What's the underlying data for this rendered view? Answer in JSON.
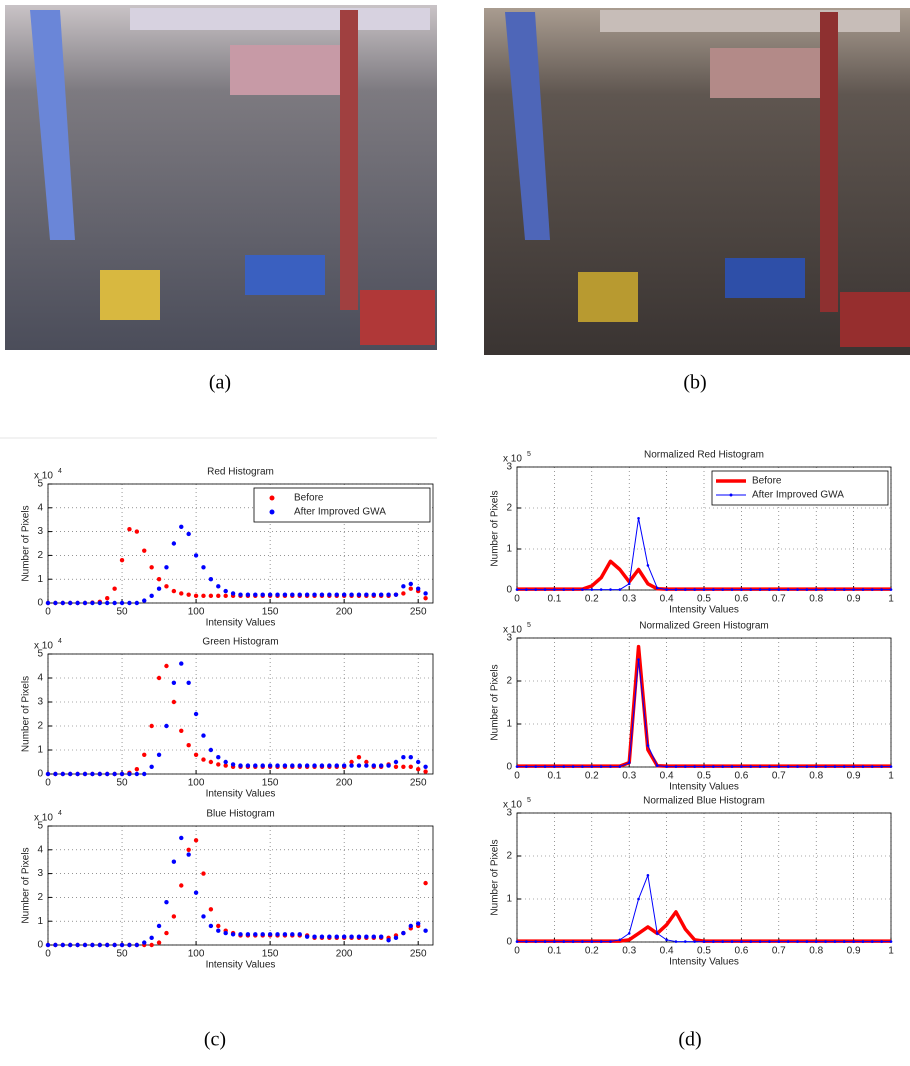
{
  "figure_labels": [
    "(a)",
    "(b)",
    "(c)",
    "(d)"
  ],
  "chart_data": [
    {
      "type": "scatter",
      "title": "Red Histogram",
      "x_label": "Intensity Values",
      "y_label": "Number of Pixels",
      "y_multiplier": "x 10",
      "y_exponent": 4,
      "xlim": [
        0,
        260
      ],
      "ylim": [
        0,
        5
      ],
      "xticks": [
        0,
        50,
        100,
        150,
        200,
        250
      ],
      "yticks": [
        0,
        1,
        2,
        3,
        4,
        5
      ],
      "grid": true,
      "legend": "upper right",
      "x": [
        0,
        5,
        10,
        15,
        20,
        25,
        30,
        35,
        40,
        45,
        50,
        55,
        60,
        65,
        70,
        75,
        80,
        85,
        90,
        95,
        100,
        105,
        110,
        115,
        120,
        125,
        130,
        135,
        140,
        145,
        150,
        155,
        160,
        165,
        170,
        175,
        180,
        185,
        190,
        195,
        200,
        205,
        210,
        215,
        220,
        225,
        230,
        235,
        240,
        245,
        250,
        255
      ],
      "series": [
        {
          "name": "Before",
          "color": "#ff0000",
          "values": [
            0,
            0,
            0,
            0,
            0,
            0,
            0.02,
            0.05,
            0.2,
            0.6,
            1.8,
            3.1,
            3,
            2.2,
            1.5,
            1,
            0.7,
            0.5,
            0.4,
            0.35,
            0.3,
            0.3,
            0.3,
            0.3,
            0.3,
            0.3,
            0.3,
            0.3,
            0.3,
            0.3,
            0.3,
            0.3,
            0.3,
            0.3,
            0.3,
            0.3,
            0.3,
            0.3,
            0.3,
            0.3,
            0.3,
            0.3,
            0.3,
            0.3,
            0.3,
            0.3,
            0.3,
            0.35,
            0.4,
            0.6,
            0.5,
            0.2
          ]
        },
        {
          "name": "After Improved GWA",
          "color": "#0000ff",
          "values": [
            0,
            0,
            0,
            0,
            0,
            0,
            0,
            0,
            0,
            0,
            0,
            0,
            0,
            0.1,
            0.3,
            0.6,
            1.5,
            2.5,
            3.2,
            2.9,
            2,
            1.5,
            1,
            0.7,
            0.5,
            0.4,
            0.35,
            0.35,
            0.35,
            0.35,
            0.35,
            0.35,
            0.35,
            0.35,
            0.35,
            0.35,
            0.35,
            0.35,
            0.35,
            0.35,
            0.35,
            0.35,
            0.35,
            0.35,
            0.35,
            0.35,
            0.35,
            0.35,
            0.7,
            0.8,
            0.6,
            0.4
          ]
        }
      ]
    },
    {
      "type": "scatter",
      "title": "Green Histogram",
      "x_label": "Intensity Values",
      "y_label": "Number of Pixels",
      "y_multiplier": "x 10",
      "y_exponent": 4,
      "xlim": [
        0,
        260
      ],
      "ylim": [
        0,
        5
      ],
      "xticks": [
        0,
        50,
        100,
        150,
        200,
        250
      ],
      "yticks": [
        0,
        1,
        2,
        3,
        4,
        5
      ],
      "grid": true,
      "x": [
        0,
        5,
        10,
        15,
        20,
        25,
        30,
        35,
        40,
        45,
        50,
        55,
        60,
        65,
        70,
        75,
        80,
        85,
        90,
        95,
        100,
        105,
        110,
        115,
        120,
        125,
        130,
        135,
        140,
        145,
        150,
        155,
        160,
        165,
        170,
        175,
        180,
        185,
        190,
        195,
        200,
        205,
        210,
        215,
        220,
        225,
        230,
        235,
        240,
        245,
        250,
        255
      ],
      "series": [
        {
          "color": "#ff0000",
          "values": [
            0,
            0,
            0,
            0,
            0,
            0,
            0,
            0,
            0,
            0,
            0,
            0.05,
            0.2,
            0.8,
            2,
            4,
            4.5,
            3,
            1.8,
            1.2,
            0.8,
            0.6,
            0.5,
            0.4,
            0.35,
            0.3,
            0.3,
            0.3,
            0.3,
            0.3,
            0.3,
            0.3,
            0.3,
            0.3,
            0.3,
            0.3,
            0.3,
            0.3,
            0.3,
            0.3,
            0.3,
            0.5,
            0.7,
            0.5,
            0.3,
            0.3,
            0.4,
            0.3,
            0.3,
            0.3,
            0.2,
            0.1
          ]
        },
        {
          "color": "#0000ff",
          "values": [
            0,
            0,
            0,
            0,
            0,
            0,
            0,
            0,
            0,
            0,
            0,
            0,
            0,
            0,
            0.3,
            0.8,
            2,
            3.8,
            4.6,
            3.8,
            2.5,
            1.6,
            1,
            0.7,
            0.5,
            0.4,
            0.35,
            0.35,
            0.35,
            0.35,
            0.35,
            0.35,
            0.35,
            0.35,
            0.35,
            0.35,
            0.35,
            0.35,
            0.35,
            0.35,
            0.35,
            0.35,
            0.35,
            0.35,
            0.35,
            0.35,
            0.35,
            0.5,
            0.7,
            0.7,
            0.5,
            0.3
          ]
        }
      ]
    },
    {
      "type": "scatter",
      "title": "Blue Histogram",
      "x_label": "Intensity Values",
      "y_label": "Number of Pixels",
      "y_multiplier": "x 10",
      "y_exponent": 4,
      "xlim": [
        0,
        260
      ],
      "ylim": [
        0,
        5
      ],
      "xticks": [
        0,
        50,
        100,
        150,
        200,
        250
      ],
      "yticks": [
        0,
        1,
        2,
        3,
        4,
        5
      ],
      "grid": true,
      "x": [
        0,
        5,
        10,
        15,
        20,
        25,
        30,
        35,
        40,
        45,
        50,
        55,
        60,
        65,
        70,
        75,
        80,
        85,
        90,
        95,
        100,
        105,
        110,
        115,
        120,
        125,
        130,
        135,
        140,
        145,
        150,
        155,
        160,
        165,
        170,
        175,
        180,
        185,
        190,
        195,
        200,
        205,
        210,
        215,
        220,
        225,
        230,
        235,
        240,
        245,
        250,
        255
      ],
      "series": [
        {
          "color": "#ff0000",
          "values": [
            0,
            0,
            0,
            0,
            0,
            0,
            0,
            0,
            0,
            0,
            0,
            0,
            0,
            0,
            0,
            0.1,
            0.5,
            1.2,
            2.5,
            4,
            4.4,
            3,
            1.5,
            0.8,
            0.6,
            0.5,
            0.4,
            0.4,
            0.4,
            0.4,
            0.4,
            0.4,
            0.4,
            0.4,
            0.4,
            0.4,
            0.3,
            0.3,
            0.3,
            0.3,
            0.3,
            0.3,
            0.3,
            0.3,
            0.3,
            0.3,
            0.3,
            0.4,
            0.5,
            0.7,
            0.8,
            2.6
          ]
        },
        {
          "color": "#0000ff",
          "values": [
            0,
            0,
            0,
            0,
            0,
            0,
            0,
            0,
            0,
            0,
            0,
            0,
            0,
            0.1,
            0.3,
            0.8,
            1.8,
            3.5,
            4.5,
            3.8,
            2.2,
            1.2,
            0.8,
            0.6,
            0.5,
            0.45,
            0.45,
            0.45,
            0.45,
            0.45,
            0.45,
            0.45,
            0.45,
            0.45,
            0.45,
            0.35,
            0.35,
            0.35,
            0.35,
            0.35,
            0.35,
            0.35,
            0.35,
            0.35,
            0.35,
            0.35,
            0.2,
            0.3,
            0.5,
            0.8,
            0.9,
            0.6
          ]
        }
      ]
    },
    {
      "type": "line",
      "title": "Normalized Red Histogram",
      "x_label": "Intensity Values",
      "y_label": "Number of Pixels",
      "y_multiplier": "x 10",
      "y_exponent": 5,
      "xlim": [
        0,
        1
      ],
      "ylim": [
        0,
        3
      ],
      "xticks": [
        0,
        0.1,
        0.2,
        0.3,
        0.4,
        0.5,
        0.6,
        0.7,
        0.8,
        0.9,
        1
      ],
      "yticks": [
        0,
        1,
        2,
        3
      ],
      "grid": true,
      "legend": "upper right",
      "x": [
        0,
        0.025,
        0.05,
        0.075,
        0.1,
        0.125,
        0.15,
        0.175,
        0.2,
        0.225,
        0.25,
        0.275,
        0.3,
        0.325,
        0.35,
        0.375,
        0.4,
        0.425,
        0.45,
        0.475,
        0.5,
        0.525,
        0.55,
        0.575,
        0.6,
        0.625,
        0.65,
        0.675,
        0.7,
        0.725,
        0.75,
        0.775,
        0.8,
        0.825,
        0.85,
        0.875,
        0.9,
        0.925,
        0.95,
        0.975,
        1
      ],
      "series": [
        {
          "name": "Before",
          "color": "#ff0000",
          "values": [
            0.02,
            0.02,
            0.02,
            0.02,
            0.02,
            0.02,
            0.02,
            0.02,
            0.1,
            0.3,
            0.7,
            0.5,
            0.2,
            0.5,
            0.15,
            0.03,
            0.02,
            0.02,
            0.02,
            0.02,
            0.02,
            0.02,
            0.02,
            0.02,
            0.02,
            0.02,
            0.02,
            0.02,
            0.02,
            0.02,
            0.02,
            0.02,
            0.02,
            0.02,
            0.02,
            0.02,
            0.02,
            0.02,
            0.02,
            0.02,
            0.02
          ]
        },
        {
          "name": "After Improved GWA",
          "color": "#0000ff",
          "values": [
            0.01,
            0.01,
            0.01,
            0.01,
            0.01,
            0.01,
            0.01,
            0.01,
            0.01,
            0.01,
            0.01,
            0.01,
            0.15,
            1.75,
            0.6,
            0.05,
            0.01,
            0.01,
            0.01,
            0.01,
            0.01,
            0.01,
            0.01,
            0.01,
            0.01,
            0.01,
            0.01,
            0.01,
            0.01,
            0.01,
            0.01,
            0.01,
            0.01,
            0.01,
            0.01,
            0.01,
            0.01,
            0.01,
            0.01,
            0.01,
            0.01
          ]
        }
      ]
    },
    {
      "type": "line",
      "title": "Normalized Green Histogram",
      "x_label": "Intensity Values",
      "y_label": "Number of Pixels",
      "y_multiplier": "x 10",
      "y_exponent": 5,
      "xlim": [
        0,
        1
      ],
      "ylim": [
        0,
        3
      ],
      "xticks": [
        0,
        0.1,
        0.2,
        0.3,
        0.4,
        0.5,
        0.6,
        0.7,
        0.8,
        0.9,
        1
      ],
      "yticks": [
        0,
        1,
        2,
        3
      ],
      "grid": true,
      "x": [
        0,
        0.025,
        0.05,
        0.075,
        0.1,
        0.125,
        0.15,
        0.175,
        0.2,
        0.225,
        0.25,
        0.275,
        0.3,
        0.325,
        0.35,
        0.375,
        0.4,
        0.425,
        0.45,
        0.475,
        0.5,
        0.525,
        0.55,
        0.575,
        0.6,
        0.625,
        0.65,
        0.675,
        0.7,
        0.725,
        0.75,
        0.775,
        0.8,
        0.825,
        0.85,
        0.875,
        0.9,
        0.925,
        0.95,
        0.975,
        1
      ],
      "series": [
        {
          "color": "#ff0000",
          "values": [
            0.02,
            0.02,
            0.02,
            0.02,
            0.02,
            0.02,
            0.02,
            0.02,
            0.02,
            0.02,
            0.02,
            0.02,
            0.1,
            2.8,
            0.4,
            0.03,
            0.02,
            0.02,
            0.02,
            0.02,
            0.02,
            0.02,
            0.02,
            0.02,
            0.02,
            0.02,
            0.02,
            0.02,
            0.02,
            0.02,
            0.02,
            0.02,
            0.02,
            0.02,
            0.02,
            0.02,
            0.02,
            0.02,
            0.02,
            0.02,
            0.02
          ]
        },
        {
          "color": "#0000ff",
          "values": [
            0.01,
            0.01,
            0.01,
            0.01,
            0.01,
            0.01,
            0.01,
            0.01,
            0.01,
            0.01,
            0.01,
            0.01,
            0.1,
            2.5,
            0.5,
            0.03,
            0.01,
            0.01,
            0.01,
            0.01,
            0.01,
            0.01,
            0.01,
            0.01,
            0.01,
            0.01,
            0.01,
            0.01,
            0.01,
            0.01,
            0.01,
            0.01,
            0.01,
            0.01,
            0.01,
            0.01,
            0.01,
            0.01,
            0.01,
            0.01,
            0.01
          ]
        }
      ]
    },
    {
      "type": "line",
      "title": "Normalized Blue Histogram",
      "x_label": "Intensity Values",
      "y_label": "Number of Pixels",
      "y_multiplier": "x 10",
      "y_exponent": 5,
      "xlim": [
        0,
        1
      ],
      "ylim": [
        0,
        3
      ],
      "xticks": [
        0,
        0.1,
        0.2,
        0.3,
        0.4,
        0.5,
        0.6,
        0.7,
        0.8,
        0.9,
        1
      ],
      "yticks": [
        0,
        1,
        2,
        3
      ],
      "grid": true,
      "x": [
        0,
        0.025,
        0.05,
        0.075,
        0.1,
        0.125,
        0.15,
        0.175,
        0.2,
        0.225,
        0.25,
        0.275,
        0.3,
        0.325,
        0.35,
        0.375,
        0.4,
        0.425,
        0.45,
        0.475,
        0.5,
        0.525,
        0.55,
        0.575,
        0.6,
        0.625,
        0.65,
        0.675,
        0.7,
        0.725,
        0.75,
        0.775,
        0.8,
        0.825,
        0.85,
        0.875,
        0.9,
        0.925,
        0.95,
        0.975,
        1
      ],
      "series": [
        {
          "color": "#ff0000",
          "values": [
            0.02,
            0.02,
            0.02,
            0.02,
            0.02,
            0.02,
            0.02,
            0.02,
            0.02,
            0.02,
            0.02,
            0.02,
            0.05,
            0.2,
            0.35,
            0.2,
            0.4,
            0.7,
            0.3,
            0.05,
            0.02,
            0.02,
            0.02,
            0.02,
            0.02,
            0.02,
            0.02,
            0.02,
            0.02,
            0.02,
            0.02,
            0.02,
            0.02,
            0.02,
            0.02,
            0.02,
            0.02,
            0.02,
            0.02,
            0.02,
            0.02
          ]
        },
        {
          "color": "#0000ff",
          "values": [
            0.01,
            0.01,
            0.01,
            0.01,
            0.01,
            0.01,
            0.01,
            0.01,
            0.01,
            0.01,
            0.01,
            0.05,
            0.2,
            1,
            1.55,
            0.2,
            0.05,
            0.01,
            0.01,
            0.01,
            0.01,
            0.01,
            0.01,
            0.01,
            0.01,
            0.01,
            0.01,
            0.01,
            0.01,
            0.01,
            0.01,
            0.01,
            0.01,
            0.01,
            0.01,
            0.01,
            0.01,
            0.01,
            0.01,
            0.01,
            0.01
          ]
        }
      ]
    }
  ]
}
